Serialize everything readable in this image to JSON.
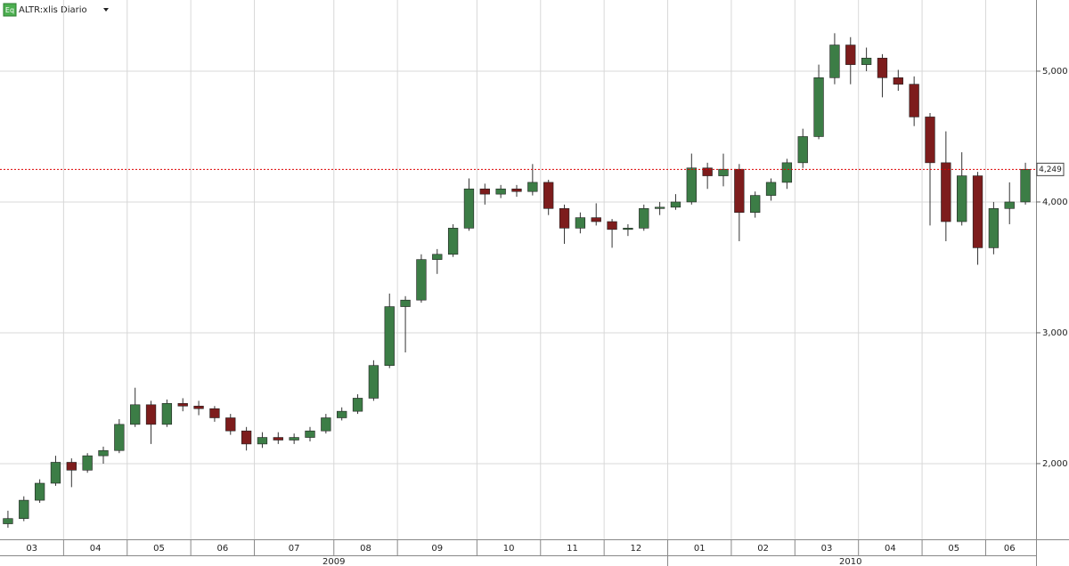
{
  "chart_data": {
    "type": "candlestick",
    "badge": "Eq",
    "title": "ALTR:xlis Diario",
    "ylim": [
      1503,
      5544
    ],
    "yticks": [
      {
        "value": 2000,
        "label": "2,000"
      },
      {
        "value": 3000,
        "label": "3,000"
      },
      {
        "value": 4000,
        "label": "4,000"
      },
      {
        "value": 5000,
        "label": "5,000"
      }
    ],
    "grid": true,
    "up_color": "#3c7d46",
    "down_color": "#7d1c1c",
    "last_price": {
      "value": 4249,
      "label": "4,249"
    },
    "years": [
      {
        "label": "2009",
        "months": [
          {
            "label": "03",
            "ohlc": [
              [
                1540,
                1640,
                1510,
                1580
              ],
              [
                1580,
                1750,
                1560,
                1720
              ],
              [
                1720,
                1880,
                1700,
                1850
              ],
              [
                1850,
                2060,
                1830,
                2010
              ]
            ]
          },
          {
            "label": "04",
            "ohlc": [
              [
                2010,
                2040,
                1820,
                1950
              ],
              [
                1950,
                2080,
                1930,
                2060
              ],
              [
                2060,
                2130,
                2000,
                2100
              ],
              [
                2100,
                2340,
                2080,
                2300
              ]
            ]
          },
          {
            "label": "05",
            "ohlc": [
              [
                2300,
                2580,
                2280,
                2450
              ],
              [
                2450,
                2480,
                2150,
                2300
              ],
              [
                2300,
                2490,
                2280,
                2460
              ],
              [
                2460,
                2500,
                2400,
                2440
              ]
            ]
          },
          {
            "label": "06",
            "ohlc": [
              [
                2440,
                2480,
                2370,
                2420
              ],
              [
                2420,
                2440,
                2320,
                2350
              ],
              [
                2350,
                2380,
                2220,
                2250
              ],
              [
                2250,
                2280,
                2100,
                2150
              ]
            ]
          },
          {
            "label": "07",
            "ohlc": [
              [
                2150,
                2240,
                2120,
                2200
              ],
              [
                2200,
                2240,
                2150,
                2180
              ],
              [
                2180,
                2230,
                2150,
                2200
              ],
              [
                2200,
                2280,
                2170,
                2250
              ],
              [
                2250,
                2380,
                2230,
                2350
              ]
            ]
          },
          {
            "label": "08",
            "ohlc": [
              [
                2350,
                2430,
                2330,
                2400
              ],
              [
                2400,
                2530,
                2380,
                2500
              ],
              [
                2500,
                2790,
                2480,
                2750
              ],
              [
                2750,
                3300,
                2730,
                3200
              ]
            ]
          },
          {
            "label": "09",
            "ohlc": [
              [
                3200,
                3280,
                2850,
                3250
              ],
              [
                3250,
                3600,
                3230,
                3560
              ],
              [
                3560,
                3640,
                3450,
                3600
              ],
              [
                3600,
                3830,
                3580,
                3800
              ],
              [
                3800,
                4180,
                3780,
                4100
              ]
            ]
          },
          {
            "label": "10",
            "ohlc": [
              [
                4100,
                4140,
                3980,
                4060
              ],
              [
                4060,
                4130,
                4030,
                4100
              ],
              [
                4100,
                4130,
                4040,
                4080
              ],
              [
                4080,
                4290,
                4050,
                4150
              ]
            ]
          },
          {
            "label": "11",
            "ohlc": [
              [
                4150,
                4170,
                3900,
                3950
              ],
              [
                3950,
                3980,
                3680,
                3800
              ],
              [
                3800,
                3920,
                3760,
                3880
              ],
              [
                3880,
                3990,
                3820,
                3850
              ]
            ]
          },
          {
            "label": "12",
            "ohlc": [
              [
                3850,
                3870,
                3650,
                3790
              ],
              [
                3790,
                3830,
                3740,
                3800
              ],
              [
                3800,
                3980,
                3780,
                3950
              ],
              [
                3950,
                4000,
                3900,
                3960
              ]
            ]
          }
        ]
      },
      {
        "label": "2010",
        "months": [
          {
            "label": "01",
            "ohlc": [
              [
                3960,
                4060,
                3940,
                4000
              ],
              [
                4000,
                4370,
                3980,
                4260
              ],
              [
                4260,
                4300,
                4100,
                4200
              ],
              [
                4200,
                4370,
                4120,
                4250
              ]
            ]
          },
          {
            "label": "02",
            "ohlc": [
              [
                4250,
                4290,
                3700,
                3920
              ],
              [
                3920,
                4080,
                3880,
                4050
              ],
              [
                4050,
                4180,
                4010,
                4150
              ],
              [
                4150,
                4330,
                4100,
                4300
              ]
            ]
          },
          {
            "label": "03",
            "ohlc": [
              [
                4300,
                4560,
                4260,
                4500
              ],
              [
                4500,
                5050,
                4480,
                4950
              ],
              [
                4950,
                5290,
                4900,
                5200
              ],
              [
                5200,
                5260,
                4900,
                5050
              ]
            ]
          },
          {
            "label": "04",
            "ohlc": [
              [
                5050,
                5180,
                5000,
                5100
              ],
              [
                5100,
                5130,
                4800,
                4950
              ],
              [
                4950,
                5010,
                4850,
                4900
              ],
              [
                4900,
                4960,
                4580,
                4650
              ]
            ]
          },
          {
            "label": "05",
            "ohlc": [
              [
                4650,
                4680,
                3820,
                4300
              ],
              [
                4300,
                4540,
                3700,
                3850
              ],
              [
                3850,
                4380,
                3820,
                4200
              ],
              [
                4200,
                4230,
                3520,
                3650
              ]
            ]
          },
          {
            "label": "06",
            "ohlc": [
              [
                3650,
                4000,
                3600,
                3950
              ],
              [
                3950,
                4150,
                3830,
                4000
              ],
              [
                4000,
                4300,
                3980,
                4249
              ]
            ]
          }
        ]
      }
    ]
  }
}
